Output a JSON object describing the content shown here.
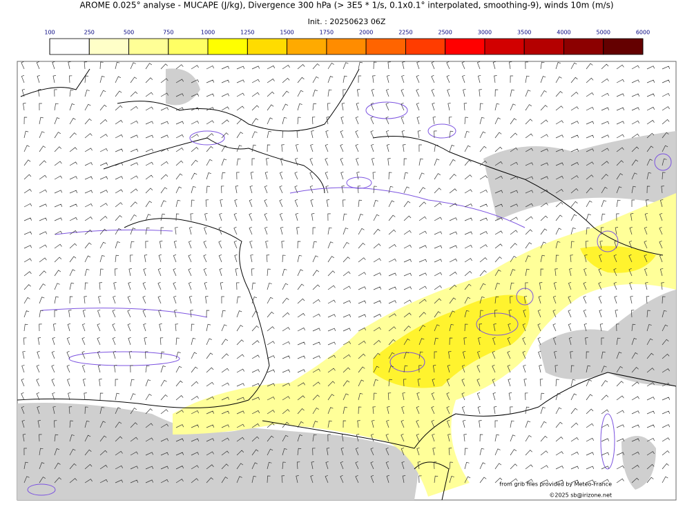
{
  "title": "AROME 0.025° analyse - MUCAPE (J/kg), Divergence 300 hPa (> 3E5 * 1/s, 0.1x0.1° interpolated, smoothing-9), winds 10m (m/s)",
  "init": "Init. : 20250623 06Z",
  "colorbar": {
    "ticks": [
      100,
      250,
      500,
      750,
      1000,
      1250,
      1500,
      1750,
      2000,
      2250,
      2500,
      3000,
      3500,
      4000,
      5000,
      6000
    ],
    "colors": [
      "#ffffff",
      "#ffffc8",
      "#ffff96",
      "#ffff64",
      "#ffff00",
      "#ffdc00",
      "#ffaa00",
      "#ff8c00",
      "#ff6400",
      "#ff3c00",
      "#ff0000",
      "#d20000",
      "#b40000",
      "#8c0000",
      "#640000"
    ],
    "tick_color": "#00007f"
  },
  "credits": [
    "from grib files provided by Meteo-France",
    "©2025 sb@irizone.net"
  ]
}
